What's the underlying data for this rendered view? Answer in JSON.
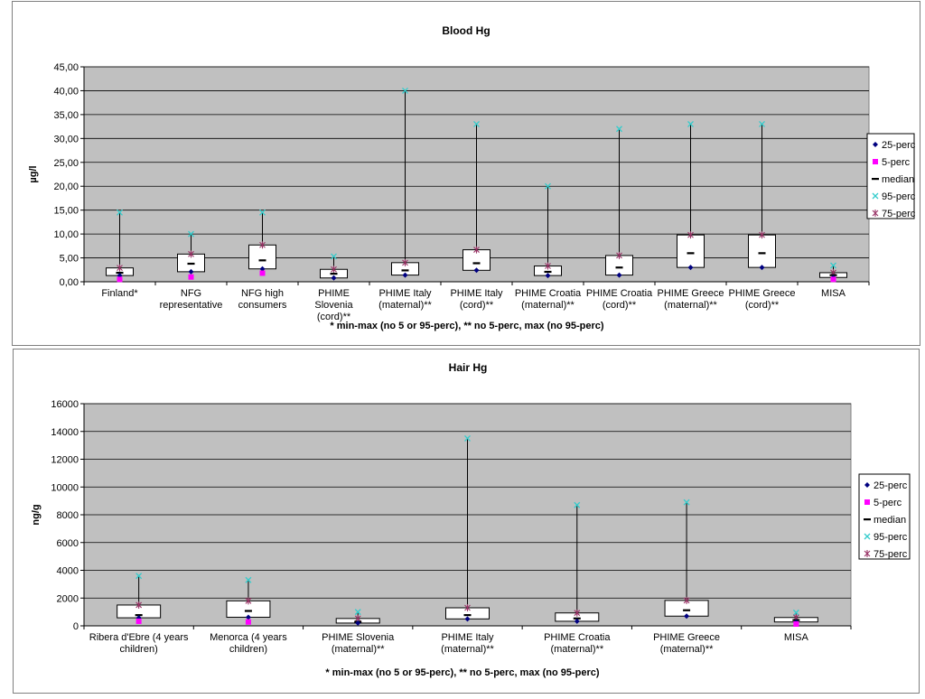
{
  "chart_data": [
    {
      "type": "box",
      "title": "Blood Hg",
      "xlabel": "",
      "ylabel": "µg/l",
      "ylim": [
        0,
        45
      ],
      "yticks": [
        "0,00",
        "5,00",
        "10,00",
        "15,00",
        "20,00",
        "25,00",
        "30,00",
        "35,00",
        "40,00",
        "45,00"
      ],
      "ytick_values": [
        0,
        5,
        10,
        15,
        20,
        25,
        30,
        35,
        40,
        45
      ],
      "grid": true,
      "legend_position": "right",
      "note": "* min-max  (no 5 or 95-perc), ** no 5-perc, max (no 95-perc)",
      "legend": [
        "25-perc",
        "5-perc",
        "median",
        "95-perc",
        "75-perc"
      ],
      "categories": [
        [
          "Finland*"
        ],
        [
          "NFG",
          "representative"
        ],
        [
          "NFG high",
          "consumers"
        ],
        [
          "PHIME",
          "Slovenia",
          "(cord)**"
        ],
        [
          "PHIME Italy",
          "(maternal)**"
        ],
        [
          "PHIME Italy",
          "(cord)**"
        ],
        [
          "PHIME Croatia",
          "(maternal)**"
        ],
        [
          "PHIME Croatia",
          "(cord)**"
        ],
        [
          "PHIME Greece",
          "(maternal)**"
        ],
        [
          "PHIME Greece",
          "(cord)**"
        ],
        [
          "MISA"
        ]
      ],
      "series": [
        {
          "name": "25-perc",
          "values": [
            1.3,
            2.1,
            2.7,
            0.8,
            1.4,
            2.4,
            1.3,
            1.4,
            3.0,
            3.0,
            0.9
          ]
        },
        {
          "name": "5-perc",
          "values": [
            0.5,
            1.0,
            1.8,
            null,
            null,
            null,
            null,
            null,
            null,
            null,
            0.5
          ]
        },
        {
          "name": "median",
          "values": [
            1.9,
            3.8,
            4.5,
            1.7,
            2.4,
            3.9,
            2.1,
            3.0,
            6.0,
            6.0,
            1.4
          ]
        },
        {
          "name": "95-perc",
          "values": [
            14.5,
            10.0,
            14.5,
            5.3,
            40.0,
            33.0,
            20.0,
            32.0,
            33.0,
            33.0,
            3.4
          ]
        },
        {
          "name": "75-perc",
          "values": [
            2.9,
            5.8,
            7.7,
            2.6,
            4.0,
            6.7,
            3.3,
            5.5,
            9.8,
            9.8,
            1.9
          ]
        }
      ]
    },
    {
      "type": "box",
      "title": "Hair Hg",
      "xlabel": "",
      "ylabel": "ng/g",
      "ylim": [
        0,
        16000
      ],
      "yticks": [
        "0",
        "2000",
        "4000",
        "6000",
        "8000",
        "10000",
        "12000",
        "14000",
        "16000"
      ],
      "ytick_values": [
        0,
        2000,
        4000,
        6000,
        8000,
        10000,
        12000,
        14000,
        16000
      ],
      "grid": true,
      "legend_position": "right",
      "note": "* min-max (no 5 or 95-perc), ** no 5-perc, max (no 95-perc)",
      "legend": [
        "25-perc",
        "5-perc",
        "median",
        "95-perc",
        "75-perc"
      ],
      "categories": [
        [
          "Ribera d'Ebre (4 years",
          "children)"
        ],
        [
          "Menorca (4 years",
          "children)"
        ],
        [
          "PHIME Slovenia",
          "(maternal)**"
        ],
        [
          "PHIME Italy",
          "(maternal)**"
        ],
        [
          "PHIME Croatia",
          "(maternal)**"
        ],
        [
          "PHIME Greece",
          "(maternal)**"
        ],
        [
          "MISA"
        ]
      ],
      "series": [
        {
          "name": "25-perc",
          "values": [
            580,
            620,
            200,
            500,
            330,
            700,
            280
          ]
        },
        {
          "name": "5-perc",
          "values": [
            330,
            280,
            null,
            null,
            null,
            null,
            130
          ]
        },
        {
          "name": "median",
          "values": [
            780,
            1080,
            300,
            780,
            540,
            1130,
            420
          ]
        },
        {
          "name": "95-perc",
          "values": [
            3600,
            3300,
            1000,
            13500,
            8700,
            8900,
            950
          ]
        },
        {
          "name": "75-perc",
          "values": [
            1500,
            1800,
            530,
            1300,
            930,
            1830,
            600
          ]
        }
      ]
    }
  ],
  "colors": {
    "plot_bg": "#c0c0c0",
    "p25": "#000080",
    "p5": "#ff00ff",
    "median": "#000000",
    "p95": "#33cccc",
    "p75": "#993366"
  }
}
